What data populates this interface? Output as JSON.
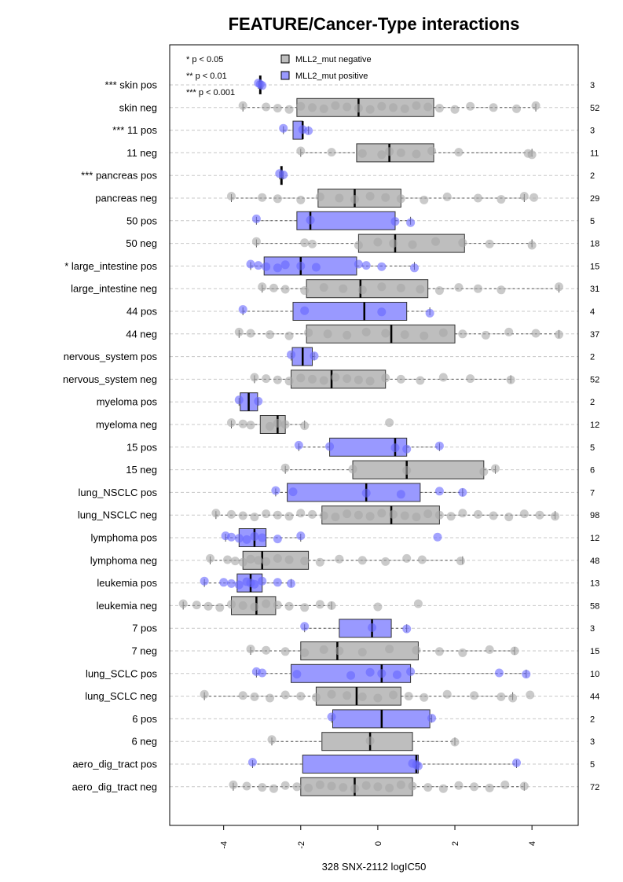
{
  "chart_data": {
    "type": "boxplot",
    "title": "FEATURE/Cancer-Type interactions",
    "xlabel": "328 SNX-2112 logIC50",
    "ylabel": "",
    "xlim": [
      -5.4,
      5.2
    ],
    "x_ticks": [
      -4,
      -2,
      0,
      2,
      4
    ],
    "x_tick_labels": [
      "-4",
      "-2",
      "0",
      "2",
      "4"
    ],
    "grid": "horizontal dashed",
    "significance_legend": [
      "* p < 0.05",
      "** p < 0.01",
      "*** p < 0.001"
    ],
    "series_legend": [
      {
        "name": "MLL2_mut negative",
        "color": "#bebebe"
      },
      {
        "name": "MLL2_mut positive",
        "color": "#9999ff"
      }
    ],
    "colors": {
      "negative_fill": "#bebebe",
      "positive_fill": "#9999ff",
      "negative_point": "#a6a6a6",
      "positive_point": "#6666ff",
      "grid": "#c8c8c8"
    },
    "rows": [
      {
        "label": "*** skin pos",
        "n": "3",
        "group": "pos",
        "box": [
          -3.1,
          -3.07,
          -3.05,
          -3.03,
          -3.0
        ],
        "points": [
          -3.1,
          -3.05,
          -3.0
        ]
      },
      {
        "label": "skin neg",
        "n": "52",
        "group": "neg",
        "box": [
          -3.5,
          -2.1,
          -0.5,
          1.45,
          4.1
        ],
        "points": [
          -3.5,
          -2.9,
          -2.6,
          -2.3,
          -2.0,
          -1.7,
          -1.4,
          -1.1,
          -0.8,
          -0.5,
          -0.2,
          0.1,
          0.4,
          0.7,
          1.0,
          1.3,
          1.6,
          2.0,
          2.4,
          3.0,
          3.6,
          4.1
        ]
      },
      {
        "label": "*** 11 pos",
        "n": "3",
        "group": "pos",
        "box": [
          -2.45,
          -2.2,
          -1.95,
          -1.95,
          -1.8
        ],
        "points": [
          -2.45,
          -1.95,
          -1.8
        ]
      },
      {
        "label": "11 neg",
        "n": "11",
        "group": "neg",
        "box": [
          -2.0,
          -0.55,
          0.3,
          1.45,
          4.0
        ],
        "points": [
          -2.0,
          -1.2,
          -0.4,
          0.1,
          0.3,
          0.6,
          1.0,
          1.4,
          2.1,
          3.9,
          4.0
        ]
      },
      {
        "label": "*** pancreas pos",
        "n": "2",
        "group": "pos",
        "box": [
          -2.55,
          -2.52,
          -2.5,
          -2.48,
          -2.45
        ],
        "points": [
          -2.55,
          -2.45
        ]
      },
      {
        "label": "pancreas neg",
        "n": "29",
        "group": "neg",
        "box": [
          -3.8,
          -1.55,
          -0.6,
          0.6,
          3.8
        ],
        "points": [
          -3.8,
          -3.0,
          -2.6,
          -2.0,
          -1.5,
          -1.0,
          -0.6,
          -0.2,
          0.2,
          0.6,
          1.2,
          1.8,
          2.6,
          3.2,
          3.8,
          4.05
        ]
      },
      {
        "label": "50 pos",
        "n": "5",
        "group": "pos",
        "box": [
          -3.15,
          -2.1,
          -1.75,
          0.45,
          0.85
        ],
        "points": [
          -3.15,
          -1.75,
          0.45,
          0.85
        ]
      },
      {
        "label": "50 neg",
        "n": "18",
        "group": "neg",
        "box": [
          -3.15,
          -0.5,
          0.45,
          2.25,
          4.0
        ],
        "points": [
          -3.15,
          -1.9,
          -1.7,
          -0.5,
          0.0,
          0.4,
          0.9,
          1.5,
          2.2,
          2.9,
          4.0
        ]
      },
      {
        "label": "* large_intestine pos",
        "n": "15",
        "group": "pos",
        "box": [
          -3.3,
          -2.95,
          -2.0,
          -0.55,
          0.95
        ],
        "points": [
          -3.3,
          -3.1,
          -2.9,
          -2.6,
          -2.4,
          -2.0,
          -1.6,
          -0.5,
          -0.3,
          0.1,
          0.95
        ]
      },
      {
        "label": "large_intestine neg",
        "n": "31",
        "group": "neg",
        "box": [
          -3.0,
          -1.85,
          -0.45,
          1.3,
          4.7
        ],
        "points": [
          -3.0,
          -2.7,
          -2.4,
          -1.9,
          -1.4,
          -0.9,
          -0.4,
          0.1,
          0.6,
          1.1,
          1.6,
          2.1,
          2.6,
          3.2,
          4.7
        ]
      },
      {
        "label": "44 pos",
        "n": "4",
        "group": "pos",
        "box": [
          -3.5,
          -2.2,
          -0.35,
          0.75,
          1.35
        ],
        "points": [
          -3.5,
          -1.9,
          0.1,
          1.35
        ]
      },
      {
        "label": "44 neg",
        "n": "37",
        "group": "neg",
        "box": [
          -3.6,
          -1.85,
          0.35,
          2.0,
          4.7
        ],
        "points": [
          -3.6,
          -3.3,
          -2.8,
          -2.3,
          -1.8,
          -1.3,
          -0.8,
          -0.3,
          0.2,
          0.7,
          1.2,
          1.7,
          2.2,
          2.8,
          3.4,
          4.1,
          4.7
        ]
      },
      {
        "label": "nervous_system pos",
        "n": "2",
        "group": "pos",
        "box": [
          -2.25,
          -2.22,
          -1.95,
          -1.7,
          -1.65
        ],
        "points": [
          -2.25,
          -1.65
        ]
      },
      {
        "label": "nervous_system neg",
        "n": "52",
        "group": "neg",
        "box": [
          -3.2,
          -2.25,
          -1.2,
          0.2,
          3.45
        ],
        "points": [
          -3.2,
          -2.9,
          -2.6,
          -2.3,
          -2.0,
          -1.7,
          -1.4,
          -1.1,
          -0.8,
          -0.5,
          -0.2,
          0.2,
          0.6,
          1.1,
          1.7,
          2.4,
          3.45
        ]
      },
      {
        "label": "myeloma pos",
        "n": "2",
        "group": "pos",
        "box": [
          -3.6,
          -3.57,
          -3.35,
          -3.12,
          -3.1
        ],
        "points": [
          -3.6,
          -3.1
        ]
      },
      {
        "label": "myeloma neg",
        "n": "12",
        "group": "neg",
        "box": [
          -3.8,
          -3.05,
          -2.6,
          -2.4,
          -1.9
        ],
        "points": [
          -3.8,
          -3.5,
          -3.3,
          -2.8,
          -2.6,
          -2.4,
          -1.9,
          0.3
        ]
      },
      {
        "label": "15 pos",
        "n": "5",
        "group": "pos",
        "box": [
          -2.05,
          -1.25,
          0.45,
          0.75,
          1.6
        ],
        "points": [
          -2.05,
          -1.25,
          0.45,
          0.75,
          1.6
        ]
      },
      {
        "label": "15 neg",
        "n": "6",
        "group": "neg",
        "box": [
          -2.4,
          -0.65,
          0.75,
          2.75,
          3.05
        ],
        "points": [
          -2.4,
          -0.65,
          0.75,
          2.75,
          3.05
        ]
      },
      {
        "label": "lung_NSCLC pos",
        "n": "7",
        "group": "pos",
        "box": [
          -2.65,
          -2.35,
          -0.3,
          1.1,
          2.2
        ],
        "points": [
          -2.65,
          -2.2,
          -0.3,
          0.6,
          1.6,
          2.2
        ]
      },
      {
        "label": "lung_NSCLC neg",
        "n": "98",
        "group": "neg",
        "box": [
          -4.2,
          -1.45,
          0.35,
          1.6,
          4.6
        ],
        "points": [
          -4.2,
          -3.8,
          -3.5,
          -3.2,
          -2.9,
          -2.6,
          -2.3,
          -2.0,
          -1.7,
          -1.4,
          -1.1,
          -0.8,
          -0.5,
          -0.2,
          0.1,
          0.4,
          0.7,
          1.0,
          1.3,
          1.6,
          1.9,
          2.2,
          2.6,
          3.0,
          3.4,
          3.8,
          4.2,
          4.6
        ]
      },
      {
        "label": "lymphoma pos",
        "n": "12",
        "group": "pos",
        "box": [
          -3.95,
          -3.6,
          -3.2,
          -2.9,
          -2.0
        ],
        "points": [
          -3.95,
          -3.8,
          -3.6,
          -3.4,
          -3.2,
          -3.0,
          -2.6,
          -2.0,
          1.55
        ]
      },
      {
        "label": "lymphoma neg",
        "n": "48",
        "group": "neg",
        "box": [
          -4.35,
          -3.5,
          -3.0,
          -1.8,
          2.2
        ],
        "points": [
          -4.35,
          -3.9,
          -3.7,
          -3.5,
          -3.3,
          -3.1,
          -2.9,
          -2.6,
          -2.3,
          -1.9,
          -1.5,
          -1.0,
          -0.4,
          0.2,
          0.75,
          1.15,
          2.15
        ]
      },
      {
        "label": "leukemia pos",
        "n": "13",
        "group": "pos",
        "box": [
          -4.5,
          -3.65,
          -3.3,
          -3.0,
          -2.25
        ],
        "points": [
          -4.5,
          -4.0,
          -3.8,
          -3.6,
          -3.4,
          -3.3,
          -3.2,
          -3.0,
          -2.6,
          -2.25
        ]
      },
      {
        "label": "leukemia neg",
        "n": "58",
        "group": "neg",
        "box": [
          -5.05,
          -3.8,
          -3.15,
          -2.65,
          -1.2
        ],
        "points": [
          -5.05,
          -4.7,
          -4.4,
          -4.1,
          -3.8,
          -3.5,
          -3.2,
          -2.9,
          -2.6,
          -2.3,
          -1.9,
          -1.5,
          -1.2,
          0.0,
          1.05
        ]
      },
      {
        "label": "7 pos",
        "n": "3",
        "group": "pos",
        "box": [
          -1.9,
          -1.0,
          -0.15,
          0.35,
          0.75
        ],
        "points": [
          -1.9,
          -0.15,
          0.75
        ]
      },
      {
        "label": "7 neg",
        "n": "15",
        "group": "neg",
        "box": [
          -3.3,
          -2.0,
          -1.05,
          1.05,
          3.55
        ],
        "points": [
          -3.3,
          -2.9,
          -2.4,
          -1.9,
          -1.4,
          -1.0,
          -0.4,
          0.3,
          1.0,
          1.6,
          2.2,
          2.9,
          3.55
        ]
      },
      {
        "label": "lung_SCLC pos",
        "n": "10",
        "group": "pos",
        "box": [
          -3.15,
          -2.25,
          0.1,
          0.85,
          3.85
        ],
        "points": [
          -3.15,
          -3.0,
          -2.1,
          -0.7,
          -0.2,
          0.1,
          0.5,
          0.85,
          3.15,
          3.85
        ]
      },
      {
        "label": "lung_SCLC neg",
        "n": "44",
        "group": "neg",
        "box": [
          -4.5,
          -1.6,
          -0.55,
          0.6,
          3.5
        ],
        "points": [
          -4.5,
          -3.5,
          -3.2,
          -2.8,
          -2.4,
          -2.0,
          -1.6,
          -1.2,
          -0.8,
          -0.4,
          0.0,
          0.4,
          0.8,
          1.2,
          1.8,
          2.5,
          3.2,
          3.5,
          3.95
        ]
      },
      {
        "label": "6 pos",
        "n": "2",
        "group": "pos",
        "box": [
          -1.2,
          -1.17,
          0.1,
          1.35,
          1.4
        ],
        "points": [
          -1.2,
          1.4
        ]
      },
      {
        "label": "6 neg",
        "n": "3",
        "group": "neg",
        "box": [
          -2.75,
          -1.45,
          -0.2,
          0.9,
          2.0
        ],
        "points": [
          -2.75,
          -0.2,
          2.0
        ]
      },
      {
        "label": "aero_dig_tract pos",
        "n": "5",
        "group": "pos",
        "box": [
          -3.25,
          -1.95,
          1.0,
          1.05,
          3.6
        ],
        "points": [
          -3.25,
          0.9,
          1.0,
          1.05,
          3.6
        ]
      },
      {
        "label": "aero_dig_tract neg",
        "n": "72",
        "group": "neg",
        "box": [
          -3.75,
          -2.0,
          -0.6,
          0.9,
          3.8
        ],
        "points": [
          -3.75,
          -3.4,
          -3.0,
          -2.7,
          -2.4,
          -2.1,
          -1.8,
          -1.5,
          -1.2,
          -0.9,
          -0.6,
          -0.3,
          0.0,
          0.3,
          0.6,
          0.9,
          1.3,
          1.7,
          2.1,
          2.5,
          2.9,
          3.3,
          3.8
        ]
      }
    ]
  }
}
